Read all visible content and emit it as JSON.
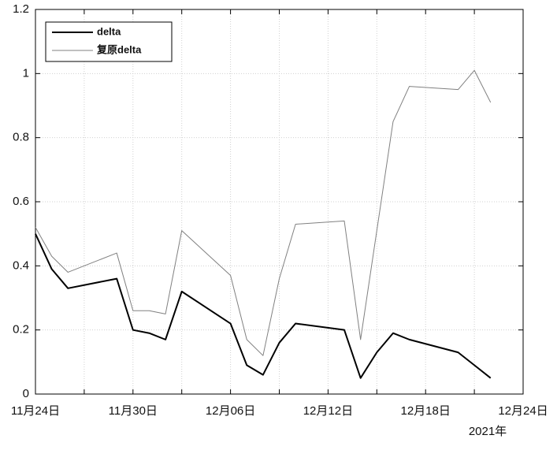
{
  "chart_data": {
    "type": "line",
    "x": [
      "2021-11-24",
      "2021-11-25",
      "2021-11-26",
      "2021-11-29",
      "2021-11-30",
      "2021-12-01",
      "2021-12-02",
      "2021-12-03",
      "2021-12-06",
      "2021-12-07",
      "2021-12-08",
      "2021-12-09",
      "2021-12-10",
      "2021-12-13",
      "2021-12-14",
      "2021-12-15",
      "2021-12-16",
      "2021-12-17",
      "2021-12-20",
      "2021-12-21",
      "2021-12-22"
    ],
    "series": [
      {
        "name": "delta",
        "color": "#000000",
        "line_width": 2,
        "values": [
          0.5,
          0.39,
          0.33,
          0.36,
          0.2,
          0.19,
          0.17,
          0.32,
          0.22,
          0.09,
          0.06,
          0.16,
          0.22,
          0.2,
          0.05,
          0.13,
          0.19,
          0.17,
          0.13,
          0.09,
          0.05
        ]
      },
      {
        "name": "复原delta",
        "color": "#808080",
        "line_width": 1,
        "values": [
          0.52,
          0.43,
          0.38,
          0.44,
          0.26,
          0.26,
          0.25,
          0.51,
          0.37,
          0.17,
          0.12,
          0.36,
          0.53,
          0.54,
          0.17,
          0.51,
          0.85,
          0.96,
          0.95,
          1.01,
          0.91
        ]
      }
    ],
    "xlim": [
      "2021-11-24",
      "2021-12-24"
    ],
    "xticks": [
      {
        "value": "2021-11-24",
        "label": "11月24日"
      },
      {
        "value": "2021-11-30",
        "label": "11月30日"
      },
      {
        "value": "2021-12-06",
        "label": "12月06日"
      },
      {
        "value": "2021-12-12",
        "label": "12月12日"
      },
      {
        "value": "2021-12-18",
        "label": "12月18日"
      },
      {
        "value": "2021-12-24",
        "label": "12月24日"
      }
    ],
    "xminorticks": [
      "2021-11-27",
      "2021-12-03",
      "2021-12-09",
      "2021-12-15",
      "2021-12-21"
    ],
    "x_secondary_label": "2021年",
    "ylim": [
      0,
      1.2
    ],
    "yticks": [
      0,
      0.2,
      0.4,
      0.6,
      0.8,
      1,
      1.2
    ],
    "grid": true,
    "legend": "northwest"
  }
}
